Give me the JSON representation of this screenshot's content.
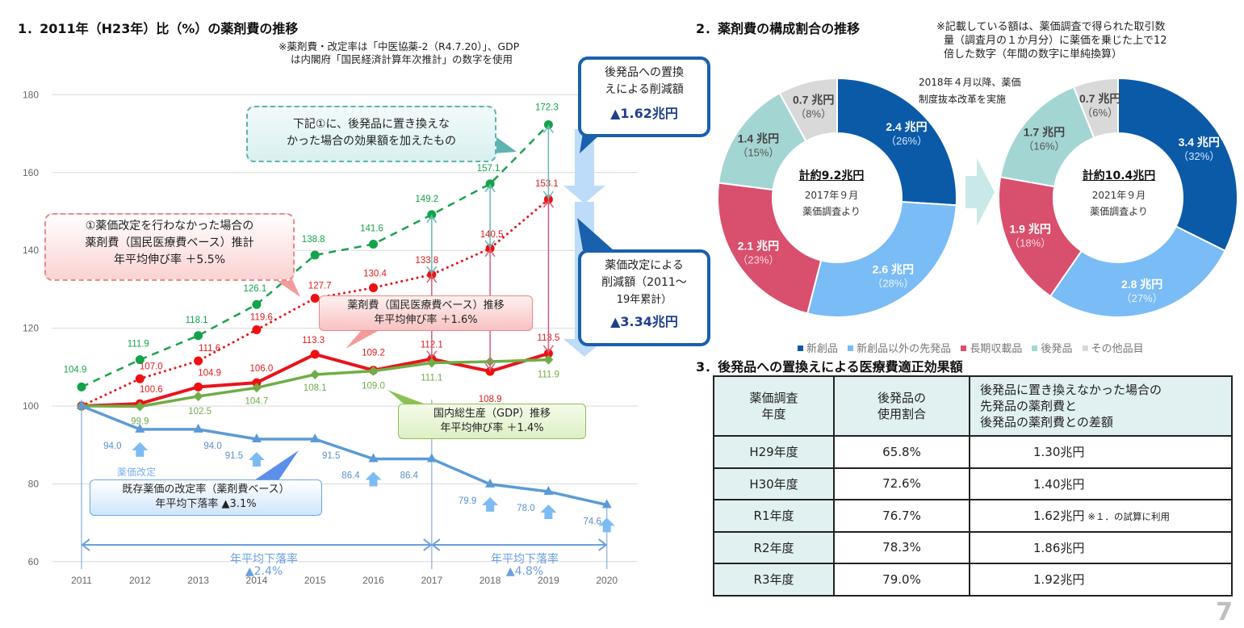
{
  "section1": {
    "title": "1．2011年（H23年）比（%）の薬剤費の推移",
    "note_line1": "※薬剤費・改定率は「中医協薬-2（R4.7.20）」、GDP",
    "note_line2": "は内閣府「国民経済計算年次推計」の数字を使用",
    "callouts": {
      "teal": [
        "下記①に、後発品に置き換えな",
        "かった場合の効果額を加えたもの"
      ],
      "red_dashed": [
        "①薬価改定を行わなかった場合の",
        "薬剤費（国民医療費ベース）推計",
        "年平均伸び率 ＋5.5%"
      ],
      "red": [
        "薬剤費（国民医療費ベース）推移",
        "年平均伸び率 ＋1.6%"
      ],
      "green": [
        "国内総生産（GDP）推移",
        "年平均伸び率 ＋1.4%"
      ],
      "blue": [
        "既存薬価の改定率（薬剤費ベース）",
        "年平均下落率 ▲3.1%"
      ],
      "generic_savings": {
        "lines": [
          "後発品への置換",
          "えによる削減額"
        ],
        "amount": "▲1.62兆円"
      },
      "revision_savings": {
        "lines": [
          "薬価改定による",
          "削減額（2011～",
          "19年累計）"
        ],
        "amount": "▲3.34兆円"
      }
    },
    "revision_label": "薬価改定",
    "decline_periods": [
      {
        "label": "年平均下落率",
        "value": "▲2.4%"
      },
      {
        "label": "年平均下落率",
        "value": "▲4.8%"
      }
    ]
  },
  "chart_data": [
    {
      "type": "line",
      "title": "2011年（H23年）比（%）の薬剤費の推移",
      "x": [
        "2011",
        "2012",
        "2013",
        "2014",
        "2015",
        "2016",
        "2017",
        "2018",
        "2019",
        "2020"
      ],
      "xlabel": "",
      "ylabel": "",
      "ylim": [
        60,
        180
      ],
      "yticks": [
        60,
        80,
        100,
        120,
        140,
        160,
        180
      ],
      "grid": true,
      "series": [
        {
          "name": "後発品に置き換えなかった場合の効果額を加えたもの",
          "color": "#1aa34a",
          "style": "dashed",
          "values": [
            104.9,
            111.9,
            118.1,
            126.1,
            138.8,
            141.6,
            149.2,
            157.1,
            172.3,
            null
          ],
          "labels": [
            "104.9",
            "111.9",
            "118.1",
            "126.1",
            "138.8",
            "141.6",
            "149.2",
            "157.1",
            "172.3",
            null
          ]
        },
        {
          "name": "薬価改定を行わなかった場合の薬剤費推計",
          "color": "#e8141c",
          "style": "dotted",
          "values": [
            100,
            107.0,
            111.6,
            119.6,
            127.7,
            130.4,
            133.8,
            140.5,
            153.1,
            null
          ],
          "labels": [
            null,
            "107.0",
            "111.6",
            "119.6",
            "127.7",
            "130.4",
            "133.8",
            "140.5",
            "153.1",
            null
          ]
        },
        {
          "name": "薬剤費（国民医療費ベース）推移",
          "color": "#e8141c",
          "style": "solid",
          "values": [
            100,
            100.6,
            104.9,
            106.0,
            113.3,
            109.2,
            112.1,
            108.9,
            113.5,
            null
          ],
          "labels": [
            null,
            "100.6",
            "104.9",
            "106.0",
            "113.3",
            "109.2",
            "112.1",
            "108.9",
            "113.5",
            null
          ]
        },
        {
          "name": "国内総生産（GDP）推移",
          "color": "#70ad47",
          "style": "solid",
          "values": [
            100,
            99.9,
            102.5,
            104.7,
            108.1,
            109.0,
            111.1,
            111.4,
            111.9,
            null
          ],
          "labels": [
            null,
            "99.9",
            "102.5",
            "104.7",
            "108.1",
            "109.0",
            "111.1",
            "111.4",
            "111.9",
            null
          ]
        },
        {
          "name": "既存薬価の改定率（薬剤費ベース）",
          "color": "#5b9bd5",
          "style": "solid",
          "values": [
            100,
            94.0,
            94.0,
            91.5,
            91.5,
            86.4,
            86.4,
            79.9,
            78.0,
            74.6
          ],
          "labels": [
            null,
            "94.0",
            "94.0",
            "91.5",
            "91.5",
            "86.4",
            "86.4",
            "79.9",
            "78.0",
            "74.6"
          ]
        }
      ],
      "revision_years": [
        "2012",
        "2014",
        "2016",
        "2018",
        "2019",
        "2020"
      ]
    },
    {
      "type": "pie",
      "title": "2017年９月 薬価調査より",
      "total": "計約9.2兆円",
      "subtitle_lines": [
        "2017年９月",
        "薬価調査より"
      ],
      "categories": [
        "新創品",
        "新創品以外の先発品",
        "長期収載品",
        "後発品",
        "その他品目"
      ],
      "values": [
        2.4,
        2.6,
        2.1,
        1.4,
        0.7
      ],
      "percents": [
        26,
        28,
        23,
        15,
        8
      ],
      "value_labels": [
        "2.4 兆円",
        "2.6 兆円",
        "2.1 兆円",
        "1.4 兆円",
        "0.7 兆円"
      ],
      "percent_labels": [
        "（26%）",
        "（28%）",
        "（23%）",
        "（15%）",
        "（8%）"
      ],
      "unit": "兆円"
    },
    {
      "type": "pie",
      "title": "2021年９月 薬価調査より",
      "total": "計約10.4兆円",
      "subtitle_lines": [
        "2021年９月",
        "薬価調査より"
      ],
      "categories": [
        "新創品",
        "新創品以外の先発品",
        "長期収載品",
        "後発品",
        "その他品目"
      ],
      "values": [
        3.4,
        2.8,
        1.9,
        1.7,
        0.7
      ],
      "percents": [
        32,
        27,
        18,
        16,
        6
      ],
      "value_labels": [
        "3.4 兆円",
        "2.8 兆円",
        "1.9 兆円",
        "1.7 兆円",
        "0.7 兆円"
      ],
      "percent_labels": [
        "（32%）",
        "（27%）",
        "（18%）",
        "（16%）",
        "（6%）"
      ],
      "unit": "兆円"
    }
  ],
  "section2": {
    "title": "2．薬剤費の構成割合の推移",
    "note_lines": [
      "※記載している額は、薬価調査で得られた取引数",
      "量（調査月の１か月分）に薬価を乗じた上で12",
      "倍した数字（年間の数字に単純換算）"
    ],
    "reform_note": [
      "2018年４月以降、薬価",
      "制度抜本改革を実施"
    ],
    "legend": [
      {
        "label": "新創品",
        "color": "#0b5aa8"
      },
      {
        "label": "新創品以外の先発品",
        "color": "#7abcf5"
      },
      {
        "label": "長期収載品",
        "color": "#d94f6e"
      },
      {
        "label": "後発品",
        "color": "#a3d6d3"
      },
      {
        "label": "その他品目",
        "color": "#d9d9d9"
      }
    ]
  },
  "section3": {
    "title": "3．後発品への置換えによる医療費適正効果額",
    "headers": [
      [
        "薬価調査",
        "年度"
      ],
      [
        "後発品の",
        "使用割合"
      ],
      [
        "後発品に置き換えなかった場合の",
        "先発品の薬剤費と",
        "後発品の薬剤費との差額"
      ]
    ],
    "rows": [
      {
        "year": "H29年度",
        "share": "65.8%",
        "amount": "1.30兆円",
        "note": ""
      },
      {
        "year": "H30年度",
        "share": "72.6%",
        "amount": "1.40兆円",
        "note": ""
      },
      {
        "year": "R1年度",
        "share": "76.7%",
        "amount": "1.62兆円",
        "note": "※１．の試算に利用"
      },
      {
        "year": "R2年度",
        "share": "78.3%",
        "amount": "1.86兆円",
        "note": ""
      },
      {
        "year": "R3年度",
        "share": "79.0%",
        "amount": "1.92兆円",
        "note": ""
      }
    ]
  },
  "page_number": "7"
}
